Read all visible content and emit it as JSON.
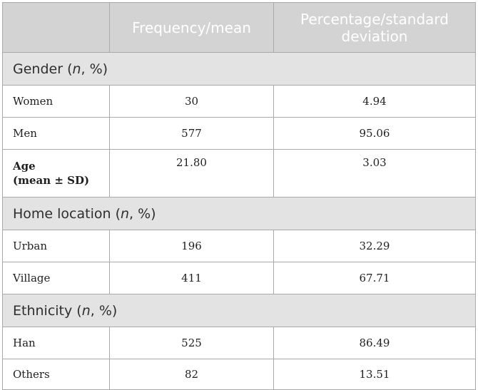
{
  "table": {
    "header": {
      "col1": "",
      "col2": "Frequency/mean",
      "col3_line1": "Percentage/standard",
      "col3_line2": "deviation"
    },
    "sections": [
      {
        "title": "Gender",
        "title_suffix_italic": "n",
        "title_suffix_rest": ", %)",
        "title_paren": " (",
        "rows": [
          {
            "label": "Women",
            "value1": "30",
            "value2": "4.94"
          },
          {
            "label": "Men",
            "value1": "577",
            "value2": "95.06"
          }
        ]
      },
      {
        "title": "Home location",
        "title_suffix_italic": "n",
        "title_suffix_rest": ", %)",
        "title_paren": " (",
        "rows": [
          {
            "label": "Urban",
            "value1": "196",
            "value2": "32.29"
          },
          {
            "label": "Village",
            "value1": "411",
            "value2": "67.71"
          }
        ]
      },
      {
        "title": "Ethnicity",
        "title_suffix_italic": "n",
        "title_suffix_rest": ", %)",
        "title_paren": " (",
        "rows": [
          {
            "label": "Han",
            "value1": "525",
            "value2": "86.49"
          },
          {
            "label": "Others",
            "value1": "82",
            "value2": "13.51"
          }
        ]
      }
    ],
    "age_row": {
      "label_line1": "Age",
      "label_line2": "(mean ± SD)",
      "value1": "21.80",
      "value2": "3.03"
    }
  }
}
